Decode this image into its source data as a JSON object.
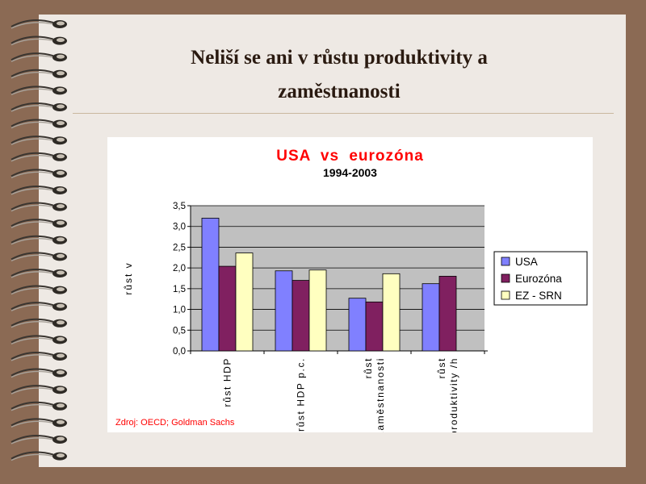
{
  "slide": {
    "title_line1": "Neliší se ani v růstu produktivity a",
    "title_line2": "zaměstnanosti"
  },
  "chart_data": {
    "type": "bar",
    "title": "USA  vs  eurozóna",
    "subtitle": "1994-2003",
    "ylabel": "růst v",
    "ylim": [
      0,
      3.5
    ],
    "yticks": [
      "0,0",
      "0,5",
      "1,0",
      "1,5",
      "2,0",
      "2,5",
      "3,0",
      "3,5"
    ],
    "categories": [
      "růst HDP",
      "růst HDP p.c.",
      "růst zaměstnanosti",
      "růst produktivity /h"
    ],
    "category_lines": [
      [
        "růst HDP"
      ],
      [
        "růst HDP p.c."
      ],
      [
        "růst",
        "zaměstnanosti"
      ],
      [
        "růst",
        "produktivity /h"
      ]
    ],
    "series": [
      {
        "name": "USA",
        "color": "#8080ff",
        "values": [
          3.2,
          1.93,
          1.27,
          1.62
        ]
      },
      {
        "name": "Eurozóna",
        "color": "#802060",
        "values": [
          2.04,
          1.7,
          1.18,
          1.8
        ]
      },
      {
        "name": "EZ - SRN",
        "color": "#ffffc0",
        "values": [
          2.36,
          1.95,
          1.86,
          null
        ]
      }
    ],
    "grid": true,
    "legend": "right",
    "source": "Zdroj: OECD; Goldman Sachs"
  }
}
